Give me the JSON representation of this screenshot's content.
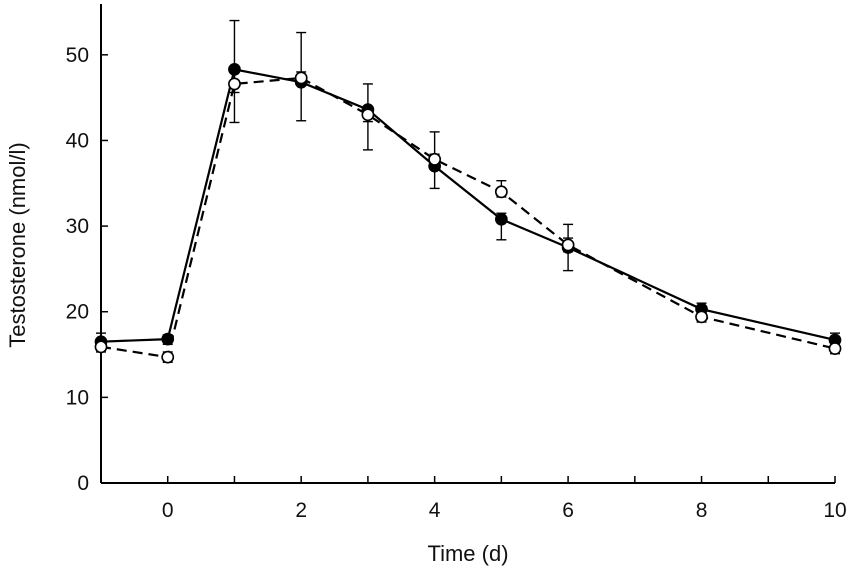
{
  "chart_data": {
    "type": "line",
    "title": "",
    "xlabel": "Time (d)",
    "ylabel": "Testosterone (nmol/l)",
    "xlim": [
      -1,
      10
    ],
    "ylim": [
      0,
      55
    ],
    "x_ticks": [
      -1,
      0,
      1,
      2,
      3,
      4,
      5,
      6,
      7,
      8,
      9,
      10
    ],
    "x_tick_labels": [
      {
        "value": 0,
        "label": "0"
      },
      {
        "value": 2,
        "label": "2"
      },
      {
        "value": 4,
        "label": "4"
      },
      {
        "value": 6,
        "label": "6"
      },
      {
        "value": 8,
        "label": "8"
      },
      {
        "value": 10,
        "label": "10"
      }
    ],
    "y_ticks": [
      {
        "value": 0,
        "label": "0"
      },
      {
        "value": 10,
        "label": "10"
      },
      {
        "value": 20,
        "label": "20"
      },
      {
        "value": 30,
        "label": "30"
      },
      {
        "value": 40,
        "label": "40"
      },
      {
        "value": 50,
        "label": "50"
      }
    ],
    "grid": false,
    "series": [
      {
        "name": "filled circles",
        "marker": "filled",
        "line": "solid",
        "x": [
          -1,
          0,
          1,
          2,
          3,
          4,
          5,
          6,
          8,
          10
        ],
        "values": [
          16.5,
          16.8,
          48.3,
          46.8,
          43.6,
          37.0,
          30.8,
          27.5,
          20.3,
          16.7
        ],
        "err_upper": [
          17.5,
          17.3,
          54.0,
          52.6,
          46.6,
          41.0,
          31.5,
          30.2,
          21.0,
          17.5
        ],
        "err_lower": [
          16.0,
          16.2,
          42.1,
          42.3,
          38.9,
          34.4,
          28.4,
          24.8,
          19.6,
          15.9
        ]
      },
      {
        "name": "open circles",
        "marker": "open",
        "line": "dashed",
        "x": [
          -1,
          0,
          1,
          2,
          3,
          4,
          5,
          6,
          8,
          10
        ],
        "values": [
          15.9,
          14.7,
          46.6,
          47.3,
          43.0,
          37.8,
          34.0,
          27.8,
          19.4,
          15.7
        ],
        "err_upper": [
          16.5,
          15.3,
          48.0,
          48.0,
          43.8,
          38.4,
          35.3,
          28.6,
          20.0,
          16.3
        ],
        "err_lower": [
          15.3,
          14.1,
          45.6,
          46.6,
          42.2,
          37.0,
          33.4,
          27.0,
          18.8,
          15.1
        ]
      }
    ]
  }
}
